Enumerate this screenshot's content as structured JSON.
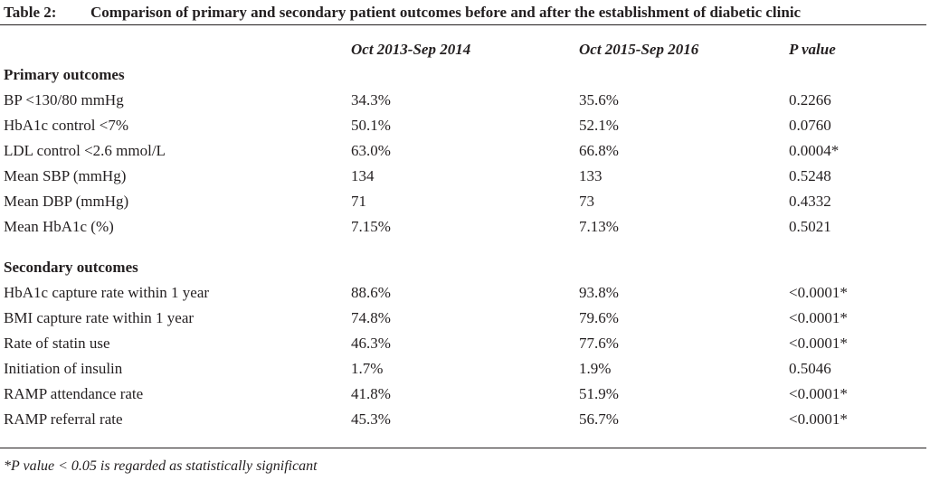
{
  "table": {
    "label": "Table 2:",
    "title": "Comparison of primary and secondary patient outcomes before and after the establishment of diabetic clinic",
    "columns": [
      "Oct 2013-Sep 2014",
      "Oct 2015-Sep 2016",
      "P value"
    ],
    "sections": [
      {
        "title": "Primary outcomes",
        "rows": [
          {
            "label": "BP <130/80 mmHg",
            "before": "34.3%",
            "after": "35.6%",
            "p": "0.2266"
          },
          {
            "label": "HbA1c control <7%",
            "before": "50.1%",
            "after": "52.1%",
            "p": "0.0760"
          },
          {
            "label": "LDL control <2.6 mmol/L",
            "before": "63.0%",
            "after": "66.8%",
            "p": "0.0004*"
          },
          {
            "label": "Mean SBP (mmHg)",
            "before": "134",
            "after": "133",
            "p": "0.5248"
          },
          {
            "label": "Mean DBP (mmHg)",
            "before": "71",
            "after": "73",
            "p": "0.4332"
          },
          {
            "label": "Mean HbA1c (%)",
            "before": "7.15%",
            "after": "7.13%",
            "p": "0.5021"
          }
        ]
      },
      {
        "title": "Secondary outcomes",
        "rows": [
          {
            "label": "HbA1c capture rate within 1 year",
            "before": "88.6%",
            "after": "93.8%",
            "p": "<0.0001*"
          },
          {
            "label": "BMI capture rate within 1 year",
            "before": "74.8%",
            "after": "79.6%",
            "p": "<0.0001*"
          },
          {
            "label": "Rate of statin use",
            "before": "46.3%",
            "after": "77.6%",
            "p": "<0.0001*"
          },
          {
            "label": "Initiation of insulin",
            "before": "1.7%",
            "after": "1.9%",
            "p": "0.5046"
          },
          {
            "label": "RAMP attendance rate",
            "before": "41.8%",
            "after": "51.9%",
            "p": "<0.0001*"
          },
          {
            "label": "RAMP referral rate",
            "before": "45.3%",
            "after": "56.7%",
            "p": "<0.0001*"
          }
        ]
      }
    ],
    "footnote": "*P value < 0.05 is regarded as statistically significant"
  }
}
